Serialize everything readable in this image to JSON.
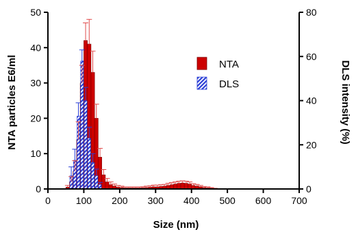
{
  "chart_data": {
    "type": "bar",
    "title": "",
    "xlabel": "Size (nm)",
    "ylabel_left": "NTA particles E6/ml",
    "ylabel_right": "DLS intensity (%)",
    "xlim": [
      0,
      700
    ],
    "ylim_left": [
      0,
      50
    ],
    "ylim_right": [
      0,
      80
    ],
    "xticks": [
      0,
      100,
      200,
      300,
      400,
      500,
      600,
      700
    ],
    "yticks_left": [
      0,
      10,
      20,
      30,
      40,
      50
    ],
    "yticks_right": [
      0,
      20,
      40,
      60,
      80
    ],
    "grid": false,
    "legend_position": "center-right",
    "series": [
      {
        "name": "NTA",
        "color": "#cc0000",
        "axis": "left",
        "bin_width": 10,
        "x": [
          55,
          65,
          75,
          85,
          95,
          105,
          115,
          125,
          135,
          145,
          155,
          165,
          175,
          185,
          195,
          205,
          215,
          225,
          235,
          245,
          255,
          265,
          275,
          285,
          295,
          305,
          315,
          325,
          335,
          345,
          355,
          365,
          375,
          385,
          395,
          405,
          415,
          425,
          435,
          445,
          455,
          465
        ],
        "values": [
          0.5,
          2,
          5,
          14,
          30,
          42,
          41,
          33,
          20,
          9,
          4,
          2,
          1.2,
          0.8,
          0.5,
          0.4,
          0.3,
          0.3,
          0.3,
          0.3,
          0.3,
          0.35,
          0.4,
          0.5,
          0.6,
          0.6,
          0.7,
          0.8,
          1.0,
          1.2,
          1.4,
          1.6,
          1.7,
          1.6,
          1.4,
          1.0,
          0.8,
          0.6,
          0.4,
          0.3,
          0.2,
          0.1
        ],
        "errors": [
          0.5,
          1.5,
          3,
          5,
          5,
          5,
          7,
          6,
          4,
          2.5,
          1.5,
          1,
          0.8,
          0.6,
          0.5,
          0.4,
          0.3,
          0.3,
          0.3,
          0.3,
          0.3,
          0.3,
          0.4,
          0.4,
          0.5,
          0.5,
          0.5,
          0.5,
          0.6,
          0.6,
          0.6,
          0.6,
          0.6,
          0.6,
          0.6,
          0.5,
          0.5,
          0.4,
          0.3,
          0.3,
          0.2,
          0.1
        ]
      },
      {
        "name": "DLS",
        "color": "#2b3fd6",
        "axis": "right",
        "bin_width": 10,
        "x": [
          65,
          75,
          85,
          95,
          105,
          115,
          125,
          135,
          145
        ],
        "values": [
          6,
          13,
          33,
          58,
          40,
          23,
          12,
          6,
          2
        ],
        "errors": [
          4,
          5,
          6,
          5,
          6,
          5,
          4,
          3,
          1
        ]
      }
    ]
  },
  "legend": {
    "nta_label": "NTA",
    "dls_label": "DLS"
  }
}
